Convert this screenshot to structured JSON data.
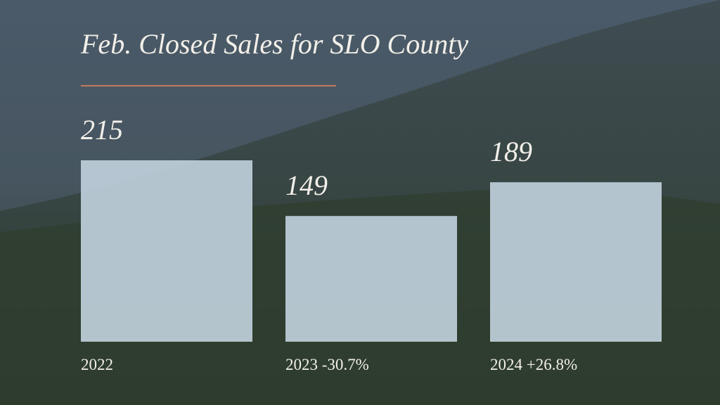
{
  "chart_data": {
    "type": "bar",
    "title": "Feb. Closed Sales for SLO County",
    "categories": [
      "2022",
      "2023 -30.7%",
      "2024 +26.8%"
    ],
    "values": [
      215,
      149,
      189
    ],
    "color": "#bfcfdb"
  }
}
